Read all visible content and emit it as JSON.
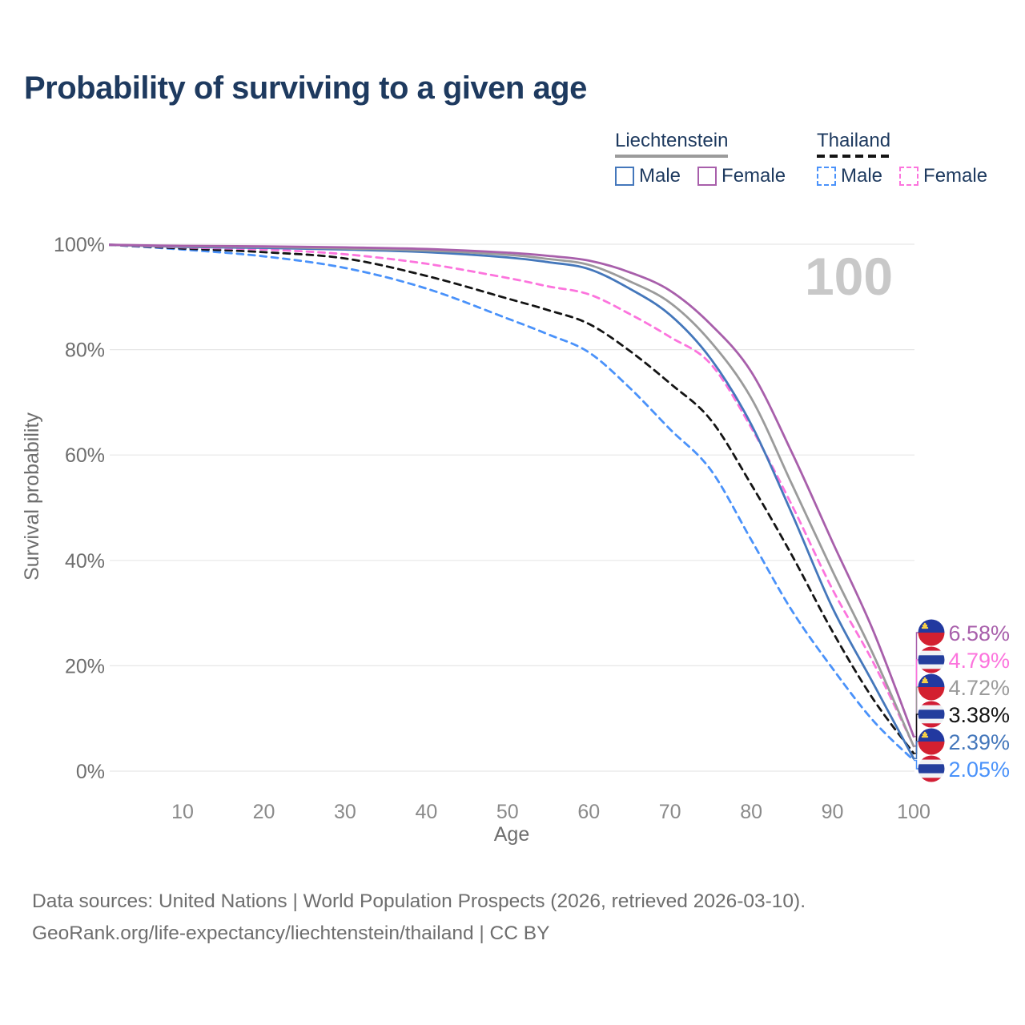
{
  "title": "Probability of surviving to a given age",
  "watermark": "100",
  "legend": {
    "groups": [
      {
        "name": "Liechtenstein",
        "swatch_color": "#9b9b9b",
        "swatch_dashed": false,
        "items": [
          {
            "label": "Male",
            "color": "#4477bb",
            "dashed": false
          },
          {
            "label": "Female",
            "color": "#a85fab",
            "dashed": false
          }
        ]
      },
      {
        "name": "Thailand",
        "swatch_color": "#141414",
        "swatch_dashed": true,
        "items": [
          {
            "label": "Male",
            "color": "#4a92fa",
            "dashed": true
          },
          {
            "label": "Female",
            "color": "#fc74dd",
            "dashed": true
          }
        ]
      }
    ]
  },
  "chart_data": {
    "type": "line",
    "title": "Probability of surviving to a given age",
    "xlabel": "Age",
    "ylabel": "Survival probability",
    "xlim": [
      0,
      100
    ],
    "ylim": [
      0,
      100
    ],
    "x_ticks": [
      10,
      20,
      30,
      40,
      50,
      60,
      70,
      80,
      90,
      100
    ],
    "y_ticks_percent": [
      0,
      20,
      40,
      60,
      80,
      100
    ],
    "grid": "horizontal-only",
    "legend_position": "top-right",
    "ages": [
      1,
      10,
      20,
      30,
      40,
      50,
      55,
      60,
      65,
      70,
      75,
      80,
      85,
      90,
      95,
      100
    ],
    "series": [
      {
        "name": "Thailand Male",
        "country": "Thailand",
        "sex": "Male",
        "flag": "th",
        "color": "#4a92fa",
        "dashed": true,
        "end_label": "2.05%",
        "end_value": 2.05,
        "values": [
          99.9,
          99.0,
          97.7,
          95.5,
          91.6,
          85.9,
          82.9,
          79.5,
          72.8,
          64.9,
          57.2,
          43.9,
          30.5,
          19.5,
          9.6,
          2.05
        ]
      },
      {
        "name": "Thailand",
        "country": "Thailand",
        "sex": "Both",
        "flag": "th",
        "color": "#141414",
        "dashed": true,
        "end_label": "3.38%",
        "end_value": 3.38,
        "values": [
          99.9,
          99.2,
          98.5,
          97.3,
          94.0,
          89.7,
          87.5,
          84.9,
          79.8,
          73.6,
          66.7,
          54.4,
          41.0,
          26.5,
          13.7,
          3.38
        ]
      },
      {
        "name": "Thailand Female",
        "country": "Thailand",
        "sex": "Female",
        "flag": "th",
        "color": "#fc74dd",
        "dashed": true,
        "end_label": "4.79%",
        "end_value": 4.79,
        "values": [
          99.9,
          99.4,
          99.0,
          98.1,
          96.3,
          93.6,
          92.0,
          90.5,
          86.8,
          82.4,
          77.3,
          65.2,
          50.5,
          34.5,
          20.7,
          4.79
        ]
      },
      {
        "name": "Liechtenstein Male",
        "country": "Liechtenstein",
        "sex": "Male",
        "flag": "li",
        "color": "#4477bb",
        "dashed": false,
        "end_label": "2.39%",
        "end_value": 2.39,
        "values": [
          99.9,
          99.5,
          99.3,
          99.0,
          98.5,
          97.5,
          96.6,
          95.3,
          91.6,
          86.6,
          78.3,
          65.8,
          48.9,
          31.0,
          16.7,
          2.39
        ]
      },
      {
        "name": "Liechtenstein",
        "country": "Liechtenstein",
        "sex": "Both",
        "flag": "li",
        "color": "#9b9b9b",
        "dashed": false,
        "end_label": "4.72%",
        "end_value": 4.72,
        "values": [
          99.9,
          99.6,
          99.5,
          99.2,
          98.8,
          98.0,
          97.2,
          96.1,
          93.0,
          88.9,
          81.5,
          70.8,
          54.5,
          38.0,
          22.2,
          4.72
        ]
      },
      {
        "name": "Liechtenstein Female",
        "country": "Liechtenstein",
        "sex": "Female",
        "flag": "li",
        "color": "#a85fab",
        "dashed": false,
        "end_label": "6.58%",
        "end_value": 6.58,
        "values": [
          99.9,
          99.7,
          99.6,
          99.4,
          99.1,
          98.4,
          97.8,
          96.9,
          94.7,
          91.2,
          84.8,
          75.8,
          60.5,
          43.5,
          26.7,
          6.58
        ]
      }
    ],
    "flag_colors": {
      "li_blue": "#2239a0",
      "li_red": "#d32030",
      "li_crown": "#f7cf46",
      "th_red": "#d21e35",
      "th_white": "#f0f2f5",
      "th_blue": "#243e9d"
    }
  },
  "footer": {
    "line1": "Data sources: United Nations | World Population Prospects (2026, retrieved 2026-03-10).",
    "line2": "GeoRank.org/life-expectancy/liechtenstein/thailand | CC BY"
  }
}
